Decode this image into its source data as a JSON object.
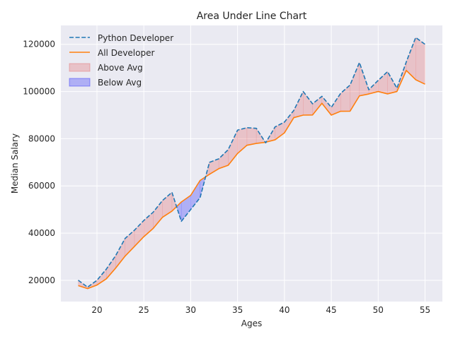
{
  "chart_data": {
    "type": "area",
    "title": "Area Under Line Chart",
    "xlabel": "Ages",
    "ylabel": "Median Salary",
    "xlim": [
      16.15,
      56.85
    ],
    "ylim": [
      11000,
      128000
    ],
    "xticks": [
      20,
      25,
      30,
      35,
      40,
      45,
      50,
      55
    ],
    "yticks": [
      20000,
      40000,
      60000,
      80000,
      100000,
      120000
    ],
    "grid": true,
    "legend_position": "top-left",
    "x": [
      18,
      19,
      20,
      21,
      22,
      23,
      24,
      25,
      26,
      27,
      28,
      29,
      30,
      31,
      32,
      33,
      34,
      35,
      36,
      37,
      38,
      39,
      40,
      41,
      42,
      43,
      44,
      45,
      46,
      47,
      48,
      49,
      50,
      51,
      52,
      53,
      54,
      55
    ],
    "series": [
      {
        "name": "Python Developer",
        "style": "dashed",
        "color": "#1f77b4",
        "values": [
          20046,
          17100,
          20000,
          24744,
          30500,
          37732,
          41247,
          45372,
          48876,
          53850,
          57287,
          45000,
          50000,
          55000,
          70000,
          71496,
          75370,
          83640,
          84666,
          84392,
          78254,
          85000,
          87038,
          91991,
          100000,
          94796,
          97962,
          93302,
          99240,
          102736,
          112285,
          100771,
          104708,
          108423,
          101407,
          112542,
          122870,
          120000
        ]
      },
      {
        "name": "All Developer",
        "style": "solid",
        "color": "#ff7f0e",
        "values": [
          17784,
          16500,
          18012,
          20628,
          25206,
          30252,
          34368,
          38496,
          42000,
          46752,
          49320,
          53200,
          56000,
          62316,
          64928,
          67317,
          68748,
          73752,
          77232,
          78000,
          78508,
          79536,
          82488,
          88935,
          90000,
          90056,
          95000,
          90000,
          91633,
          91660,
          98150,
          98964,
          100000,
          98988,
          100000,
          108923,
          105000,
          103117
        ]
      }
    ],
    "fills": [
      {
        "name": "Above Avg",
        "color": "#e24a4a",
        "alpha": 0.25
      },
      {
        "name": "Below Avg",
        "color": "#0000ff",
        "alpha": 0.25
      }
    ],
    "legend": [
      "Python Developer",
      "All Developer",
      "Above Avg",
      "Below Avg"
    ]
  },
  "style": {
    "background": "#ffffff",
    "plot_background": "#eaeaf2",
    "grid_color": "#ffffff",
    "text_color": "#262626"
  }
}
